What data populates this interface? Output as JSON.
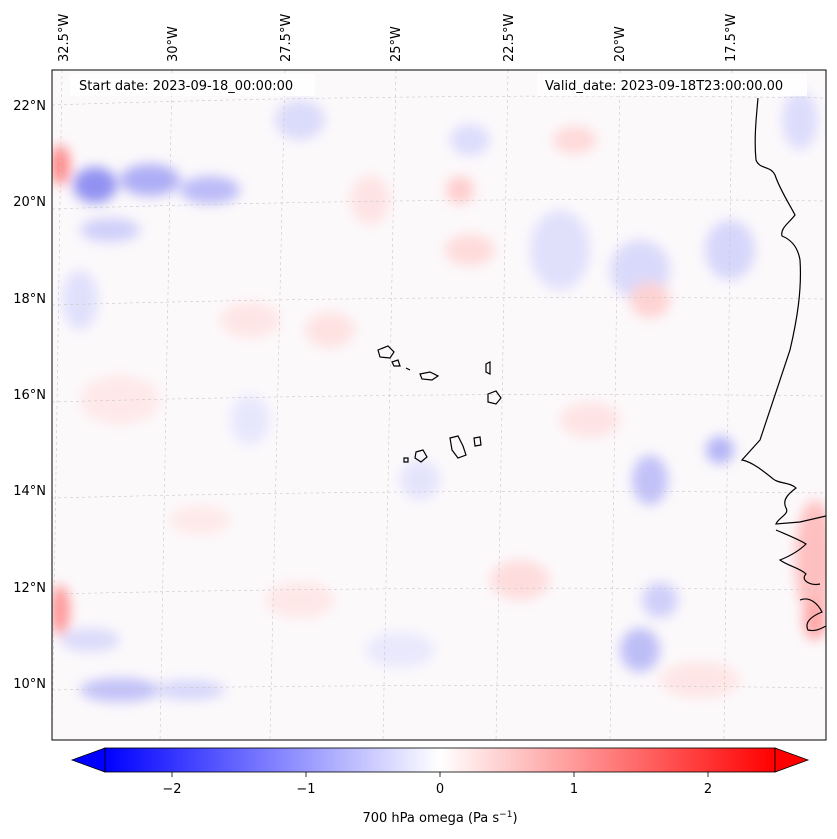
{
  "header": {
    "start_date": "Start date: 2023-09-18_00:00:00",
    "valid_date": "Valid_date: 2023-09-18T23:00:00.00"
  },
  "map": {
    "lon_labels": [
      "32.5°W",
      "30°W",
      "27.5°W",
      "25°W",
      "22.5°W",
      "20°W",
      "17.5°W"
    ],
    "lat_labels": [
      "22°N",
      "20°N",
      "18°N",
      "16°N",
      "14°N",
      "12°N",
      "10°N"
    ],
    "field": "700 hPa omega",
    "projection_note": "gridlines dashed"
  },
  "colorbar": {
    "label": "700 hPa omega (Pa s",
    "label_exp": "−1",
    "label_close": ")",
    "ticks": [
      "−2",
      "−1",
      "0",
      "1",
      "2"
    ],
    "tick_values": [
      -2,
      -1,
      0,
      1,
      2
    ],
    "vmin": -2.5,
    "vmax": 2.5,
    "colormap": "bwr",
    "extend": "both",
    "low_color": "#0000ff",
    "mid_color": "#ffffff",
    "high_color": "#ff0000"
  }
}
